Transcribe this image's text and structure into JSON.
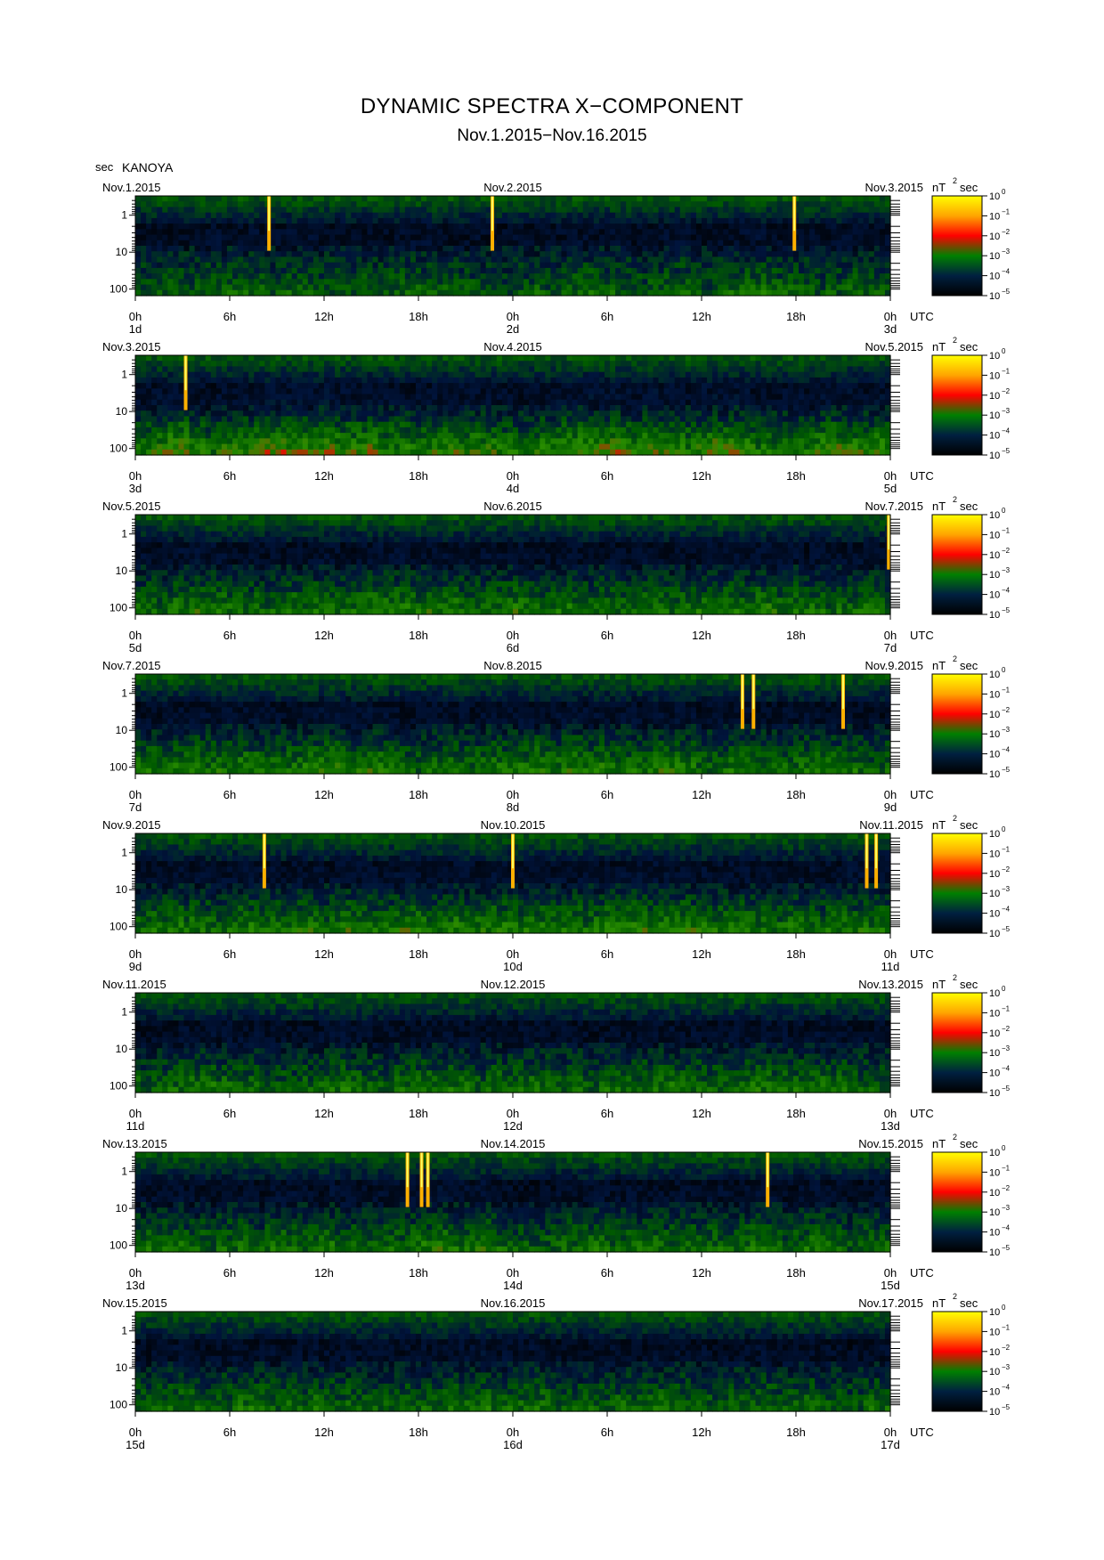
{
  "header": {
    "title": "DYNAMIC SPECTRA X−COMPONENT",
    "subtitle": "Nov.1.2015−Nov.16.2015",
    "y_unit": "sec",
    "station": "KANOYA"
  },
  "chart_data": {
    "type": "heatmap",
    "x_ticks": [
      "0h",
      "6h",
      "12h",
      "18h",
      "0h",
      "6h",
      "12h",
      "18h",
      "0h"
    ],
    "x_unit": "UTC",
    "y_ticks": [
      "1",
      "10",
      "100"
    ],
    "y_scale": "log",
    "y_range_sec": [
      0.3,
      150
    ],
    "colorbar": {
      "unit": "nT",
      "unit_exponent": "2",
      "unit_suffix": "sec",
      "tick_base": "10",
      "tick_exponents": [
        "0",
        "−1",
        "−2",
        "−3",
        "−4",
        "−5"
      ],
      "stops": [
        "#FFFF00",
        "#FFA500",
        "#FF0000",
        "#008000",
        "#002040",
        "#000000"
      ]
    },
    "panels": [
      {
        "start_label": "Nov.1.2015",
        "mid_label": "Nov.2.2015",
        "end_label": "Nov.3.2015",
        "day_labels": [
          "1d",
          "2d",
          "3d"
        ],
        "activity": 0.45,
        "seed": 11,
        "spikes_hours": [
          8.5,
          22.7,
          41.9
        ]
      },
      {
        "start_label": "Nov.3.2015",
        "mid_label": "Nov.4.2015",
        "end_label": "Nov.5.2015",
        "day_labels": [
          "3d",
          "4d",
          "5d"
        ],
        "activity": 0.75,
        "seed": 23,
        "spikes_hours": [
          3.2
        ]
      },
      {
        "start_label": "Nov.5.2015",
        "mid_label": "Nov.6.2015",
        "end_label": "Nov.7.2015",
        "day_labels": [
          "5d",
          "6d",
          "7d"
        ],
        "activity": 0.6,
        "seed": 37,
        "spikes_hours": [
          47.9
        ]
      },
      {
        "start_label": "Nov.7.2015",
        "mid_label": "Nov.8.2015",
        "end_label": "Nov.9.2015",
        "day_labels": [
          "7d",
          "8d",
          "9d"
        ],
        "activity": 0.6,
        "seed": 41,
        "spikes_hours": [
          38.6,
          39.3,
          45.0
        ]
      },
      {
        "start_label": "Nov.9.2015",
        "mid_label": "Nov.10.2015",
        "end_label": "Nov.11.2015",
        "day_labels": [
          "9d",
          "10d",
          "11d"
        ],
        "activity": 0.6,
        "seed": 53,
        "spikes_hours": [
          8.2,
          24.0,
          46.5,
          47.1
        ]
      },
      {
        "start_label": "Nov.11.2015",
        "mid_label": "Nov.12.2015",
        "end_label": "Nov.13.2015",
        "day_labels": [
          "11d",
          "12d",
          "13d"
        ],
        "activity": 0.55,
        "seed": 67,
        "spikes_hours": []
      },
      {
        "start_label": "Nov.13.2015",
        "mid_label": "Nov.14.2015",
        "end_label": "Nov.15.2015",
        "day_labels": [
          "13d",
          "14d",
          "15d"
        ],
        "activity": 0.55,
        "seed": 71,
        "spikes_hours": [
          17.3,
          18.2,
          18.6,
          40.2
        ]
      },
      {
        "start_label": "Nov.15.2015",
        "mid_label": "Nov.16.2015",
        "end_label": "Nov.17.2015",
        "day_labels": [
          "15d",
          "16d",
          "17d"
        ],
        "activity": 0.5,
        "seed": 83,
        "spikes_hours": []
      }
    ]
  }
}
